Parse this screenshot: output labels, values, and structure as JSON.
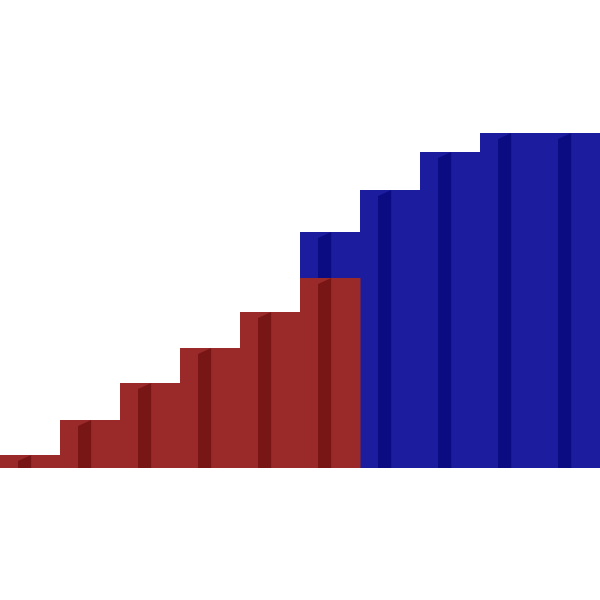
{
  "chart_data": {
    "type": "bar",
    "categories": [
      null,
      null,
      null,
      null,
      null,
      null,
      null,
      null,
      null,
      null
    ],
    "ylim": [
      0,
      468
    ],
    "series": [
      {
        "color": "#1c1c9f",
        "shade": "#0c0c82",
        "values": [
          null,
          null,
          null,
          null,
          null,
          236,
          278,
          316,
          335,
          335
        ]
      },
      {
        "color": "#9a2a2a",
        "shade": "#781616",
        "values": [
          13,
          48,
          85,
          120,
          156,
          190,
          null,
          null,
          null,
          null
        ]
      }
    ]
  }
}
